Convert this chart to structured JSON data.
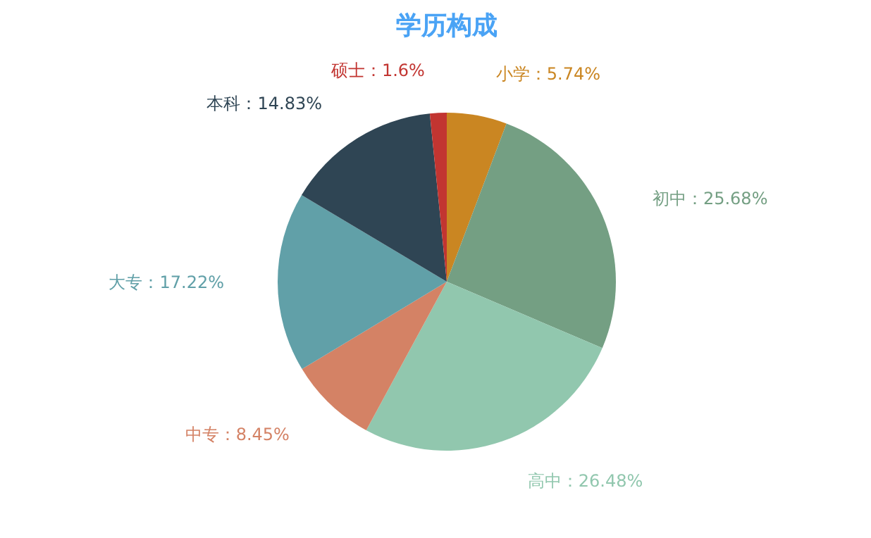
{
  "chart_data": {
    "type": "pie",
    "title": "学历构成",
    "categories": [
      "小学",
      "初中",
      "高中",
      "中专",
      "大专",
      "本科",
      "硕士"
    ],
    "values": [
      5.74,
      25.68,
      26.48,
      8.45,
      17.22,
      14.83,
      1.6
    ],
    "colors": [
      "#ca8622",
      "#749f83",
      "#91c7ae",
      "#d48265",
      "#61a0a8",
      "#2f4554",
      "#c23531"
    ],
    "value_labels": [
      "5.74%",
      "25.68%",
      "26.48%",
      "8.45%",
      "17.22%",
      "14.83%",
      "1.6%"
    ],
    "legend": false
  }
}
